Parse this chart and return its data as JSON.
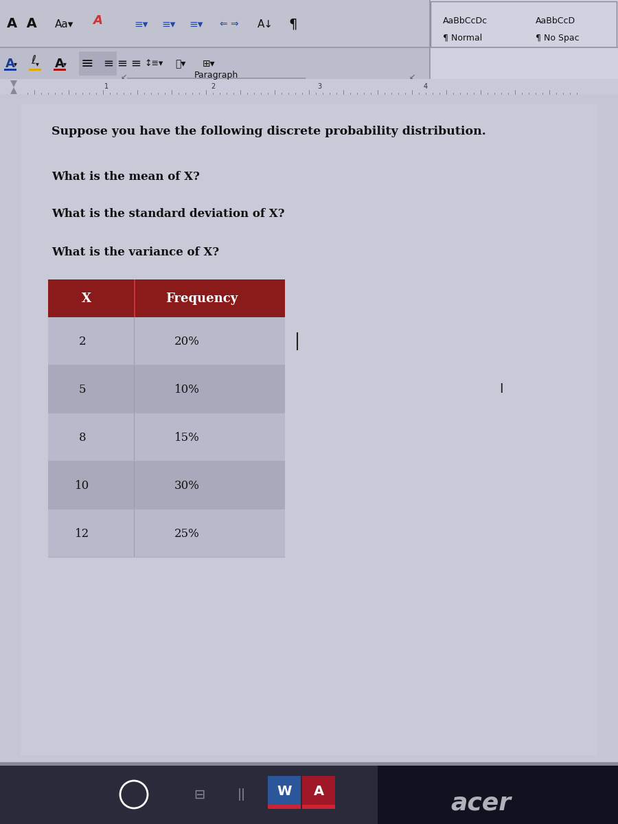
{
  "bg_color": "#8a8a9a",
  "screen_bg": "#b8bac8",
  "toolbar_bg": "#c0c2d0",
  "toolbar_bg2": "#bbbdcc",
  "doc_area_bg": "#c4c6d4",
  "page_bg": "#c8cad8",
  "title_text": "Suppose you have the following discrete probability distribution.",
  "q1": "What is the mean of X?",
  "q2": "What is the standard deviation of X?",
  "q3": "What is the variance of X?",
  "header_bg": "#8b1a1a",
  "header_text_color": "#ffffff",
  "row_bg_odd": "#b8bacb",
  "row_bg_even": "#a8aabb",
  "col1_header": "X",
  "col2_header": "Frequency",
  "rows": [
    [
      "2",
      "20%"
    ],
    [
      "5",
      "10%"
    ],
    [
      "8",
      "15%"
    ],
    [
      "10",
      "30%"
    ],
    [
      "12",
      "25%"
    ]
  ],
  "ruler_bg": "#c8cada",
  "bottom_bar_color": "#1a1a28",
  "acer_color": "#b0b0b8",
  "taskbar_bg": "#2a2a3a",
  "style_box_bg": "#d0d2e0"
}
